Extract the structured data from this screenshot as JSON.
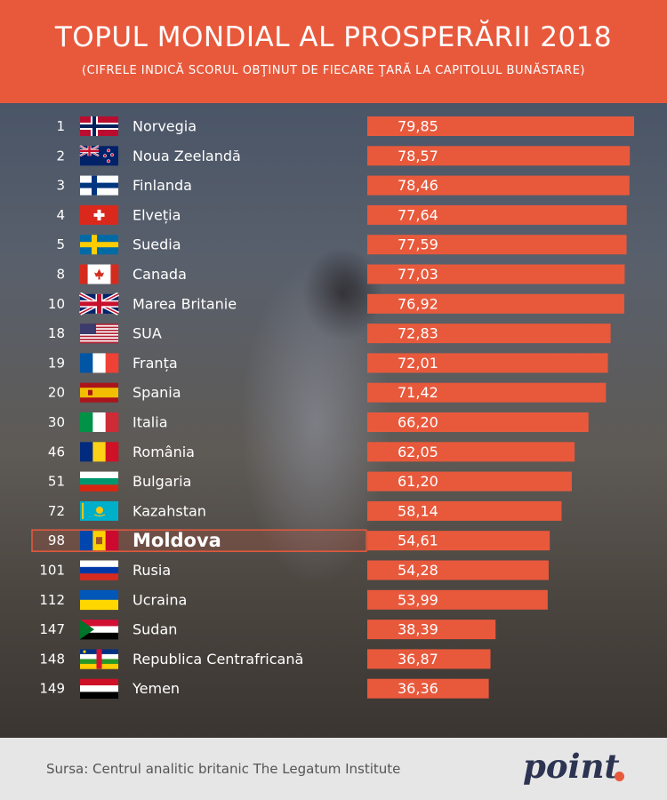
{
  "header": {
    "title": "TOPUL MONDIAL AL PROSPERĂRII 2018",
    "subtitle": "(CIFRELE INDICĂ SCORUL OBŢINUT DE FIECARE ŢARĂ LA CAPITOLUL BUNĂSTARE)"
  },
  "footer": {
    "source": "Sursa: Centrul analitic britanic The Legatum Institute",
    "logo": "point"
  },
  "colors": {
    "accent": "#e8593c",
    "text": "#ffffff",
    "logo": "#2d3452"
  },
  "chart_data": {
    "type": "bar",
    "orientation": "horizontal",
    "highlight": "Moldova",
    "rows": [
      {
        "rank": "1",
        "country": "Norvegia",
        "value": 79.85,
        "label": "79,85",
        "flag": "norway-flag"
      },
      {
        "rank": "2",
        "country": "Noua Zeelandă",
        "value": 78.57,
        "label": "78,57",
        "flag": "new-zealand-flag"
      },
      {
        "rank": "3",
        "country": "Finlanda",
        "value": 78.46,
        "label": "78,46",
        "flag": "finland-flag"
      },
      {
        "rank": "4",
        "country": "Elveția",
        "value": 77.64,
        "label": "77,64",
        "flag": "switzerland-flag"
      },
      {
        "rank": "5",
        "country": "Suedia",
        "value": 77.59,
        "label": "77,59",
        "flag": "sweden-flag"
      },
      {
        "rank": "8",
        "country": "Canada",
        "value": 77.03,
        "label": "77,03",
        "flag": "canada-flag"
      },
      {
        "rank": "10",
        "country": "Marea Britanie",
        "value": 76.92,
        "label": "76,92",
        "flag": "uk-flag"
      },
      {
        "rank": "18",
        "country": "SUA",
        "value": 72.83,
        "label": "72,83",
        "flag": "usa-flag"
      },
      {
        "rank": "19",
        "country": "Franța",
        "value": 72.01,
        "label": "72,01",
        "flag": "france-flag"
      },
      {
        "rank": "20",
        "country": "Spania",
        "value": 71.42,
        "label": "71,42",
        "flag": "spain-flag"
      },
      {
        "rank": "30",
        "country": "Italia",
        "value": 66.2,
        "label": "66,20",
        "flag": "italy-flag"
      },
      {
        "rank": "46",
        "country": "România",
        "value": 62.05,
        "label": "62,05",
        "flag": "romania-flag"
      },
      {
        "rank": "51",
        "country": "Bulgaria",
        "value": 61.2,
        "label": "61,20",
        "flag": "bulgaria-flag"
      },
      {
        "rank": "72",
        "country": "Kazahstan",
        "value": 58.14,
        "label": "58,14",
        "flag": "kazakhstan-flag"
      },
      {
        "rank": "98",
        "country": "Moldova",
        "value": 54.61,
        "label": "54,61",
        "flag": "moldova-flag"
      },
      {
        "rank": "101",
        "country": "Rusia",
        "value": 54.28,
        "label": "54,28",
        "flag": "russia-flag"
      },
      {
        "rank": "112",
        "country": "Ucraina",
        "value": 53.99,
        "label": "53,99",
        "flag": "ukraine-flag"
      },
      {
        "rank": "147",
        "country": "Sudan",
        "value": 38.39,
        "label": "38,39",
        "flag": "sudan-flag"
      },
      {
        "rank": "148",
        "country": "Republica Centrafricană",
        "value": 36.87,
        "label": "36,87",
        "flag": "central-african-republic-flag"
      },
      {
        "rank": "149",
        "country": "Yemen",
        "value": 36.36,
        "label": "36,36",
        "flag": "yemen-flag"
      }
    ]
  }
}
